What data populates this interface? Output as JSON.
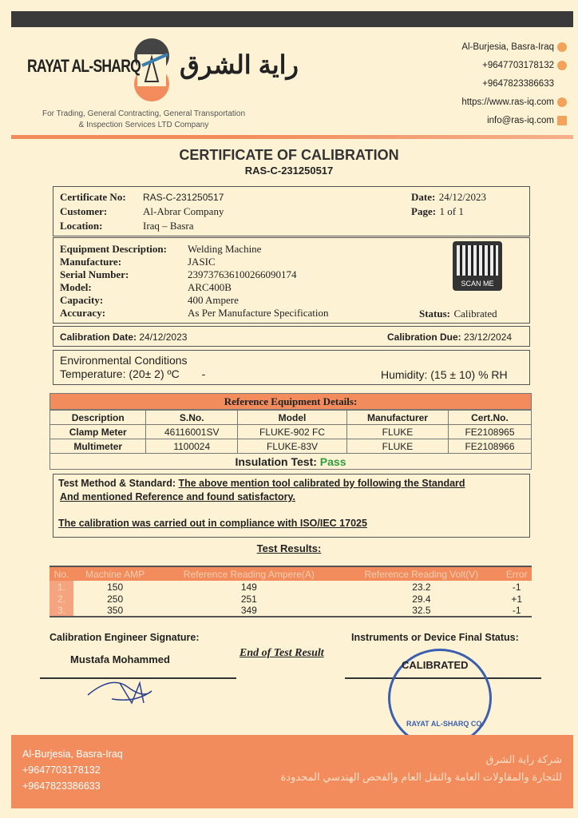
{
  "header": {
    "logo_en": "RAYAT AL-SHARQ",
    "logo_ar": "راية الشرق",
    "tagline1": "For Trading, General Contracting, General Transportation",
    "tagline2": "& Inspection Services LTD Company",
    "contacts": [
      {
        "text": "Al-Burjesia, Basra-Iraq",
        "icon": "location-icon"
      },
      {
        "text": "+9647703178132",
        "icon": "phone-icon"
      },
      {
        "text": "+9647823386633",
        "icon": ""
      },
      {
        "text": "https://www.ras-iq.com",
        "icon": "globe-icon"
      },
      {
        "text": "info@ras-iq.com",
        "icon": "mail-icon"
      }
    ]
  },
  "title": "CERTIFICATE OF CALIBRATION",
  "cert_id": "RAS-C-231250517",
  "info": {
    "cert_no_label": "Certificate No:",
    "cert_no": "RAS-C-231250517",
    "customer_label": "Customer:",
    "customer": "Al-Abrar Company",
    "location_label": "Location:",
    "location": "Iraq – Basra",
    "date_label": "Date:",
    "date": "24/12/2023",
    "page_label": "Page:",
    "page": "1 of 1"
  },
  "equipment": {
    "desc_label": "Equipment Description:",
    "desc": "Welding Machine",
    "mfr_label": "Manufacture:",
    "mfr": "JASIC",
    "serial_label": "Serial Number:",
    "serial": "23973763610026609017​4",
    "model_label": "Model:",
    "model": "ARC400B",
    "cap_label": "Capacity:",
    "cap": "400 Ampere",
    "acc_label": "Accuracy:",
    "acc": "As Per Manufacture Specification",
    "scan_label": "SCAN ME",
    "status_label": "Status:",
    "status": "Calibrated"
  },
  "dates": {
    "cal_label": "Calibration Date:",
    "cal": "24/12/2023",
    "due_label": "Calibration Due:",
    "due": "23/12/2024"
  },
  "env": {
    "title": "Environmental Conditions",
    "temp_label": "Temperature:",
    "temp": "(20± 2) ºC",
    "dash": "-",
    "hum_label": "Humidity:",
    "hum": "(15 ± 10) % RH"
  },
  "reference": {
    "title": "Reference Equipment Details:",
    "headers": [
      "Description",
      "S.No.",
      "Model",
      "Manufacturer",
      "Cert.No."
    ],
    "rows": [
      [
        "Clamp Meter",
        "46116001SV",
        "FLUKE-902 FC",
        "FLUKE",
        "FE2108965"
      ],
      [
        "Multimeter",
        "1100024",
        "FLUKE-83V",
        "FLUKE",
        "FE2108966"
      ]
    ],
    "insulation_label": "Insulation Test:",
    "insulation": "Pass"
  },
  "method": {
    "label": "Test Method & Standard:",
    "line1": "The above mention tool calibrated by following the Standard",
    "line2": "And mentioned Reference and found satisfactory.",
    "line3": "The calibration was carried out in compliance with ISO/IEC 17025"
  },
  "results": {
    "title": "Test Results:",
    "headers": [
      "No.",
      "Machine AMP",
      "Reference Reading Ampere(A)",
      "Reference Reading Volt(V)",
      "Error"
    ],
    "rows": [
      [
        "1.",
        "150",
        "149",
        "23.2",
        "-1"
      ],
      [
        "2.",
        "250",
        "251",
        "29.4",
        "+1"
      ],
      [
        "3.",
        "350",
        "349",
        "32.5",
        "-1"
      ]
    ]
  },
  "signature": {
    "label": "Calibration Engineer Signature:",
    "name": "Mustafa Mohammed",
    "end": "End of Test Result",
    "final_label": "Instruments or Device Final Status:",
    "stamp": "CALIBRATED",
    "stamp_ring": "RAYAT AL-SHARQ CO."
  },
  "footer": {
    "l1": "Al-Burjesia, Basra-Iraq",
    "l2": "+9647703178132",
    "l3": "+9647823386633",
    "ar1": "شركة راية الشرق",
    "ar2": "للتجارة والمقاولات العامة والنقل العام والفحص الهندسي المحدودة"
  },
  "colors": {
    "accent": "#f28c5c",
    "background": "#fdf3d4",
    "pass": "#2e9e3e"
  }
}
